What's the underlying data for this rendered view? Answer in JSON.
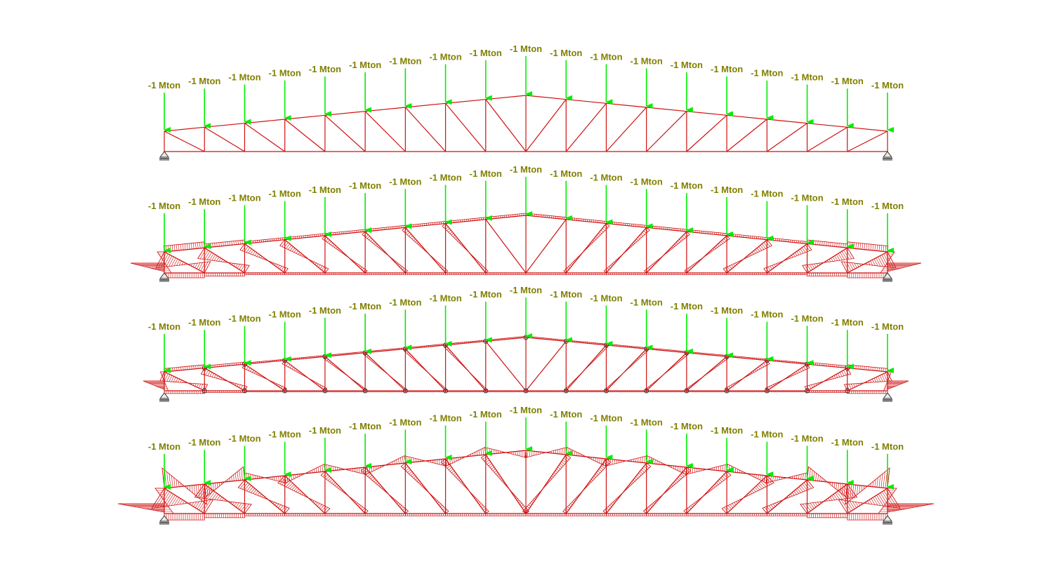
{
  "diagram": {
    "panels": [
      {
        "name": "truss-geometry-with-loads",
        "diagram": "none"
      },
      {
        "name": "truss-moment-diagram-rigid",
        "diagram": "moment-large"
      },
      {
        "name": "truss-moment-diagram-hinged",
        "diagram": "moment-small"
      },
      {
        "name": "truss-moment-diagram-variant",
        "diagram": "moment-zigzag"
      }
    ],
    "load_label": "-1 Mton",
    "node_count": 19,
    "colors": {
      "member": "#d01010",
      "hatch": "#d01010",
      "load_arrow": "#00ee00",
      "load_text": "#808000",
      "support": "#333333",
      "background": "#ffffff"
    },
    "icons": [
      "load-arrow-icon",
      "pin-support-icon",
      "hinge-node-icon"
    ]
  }
}
